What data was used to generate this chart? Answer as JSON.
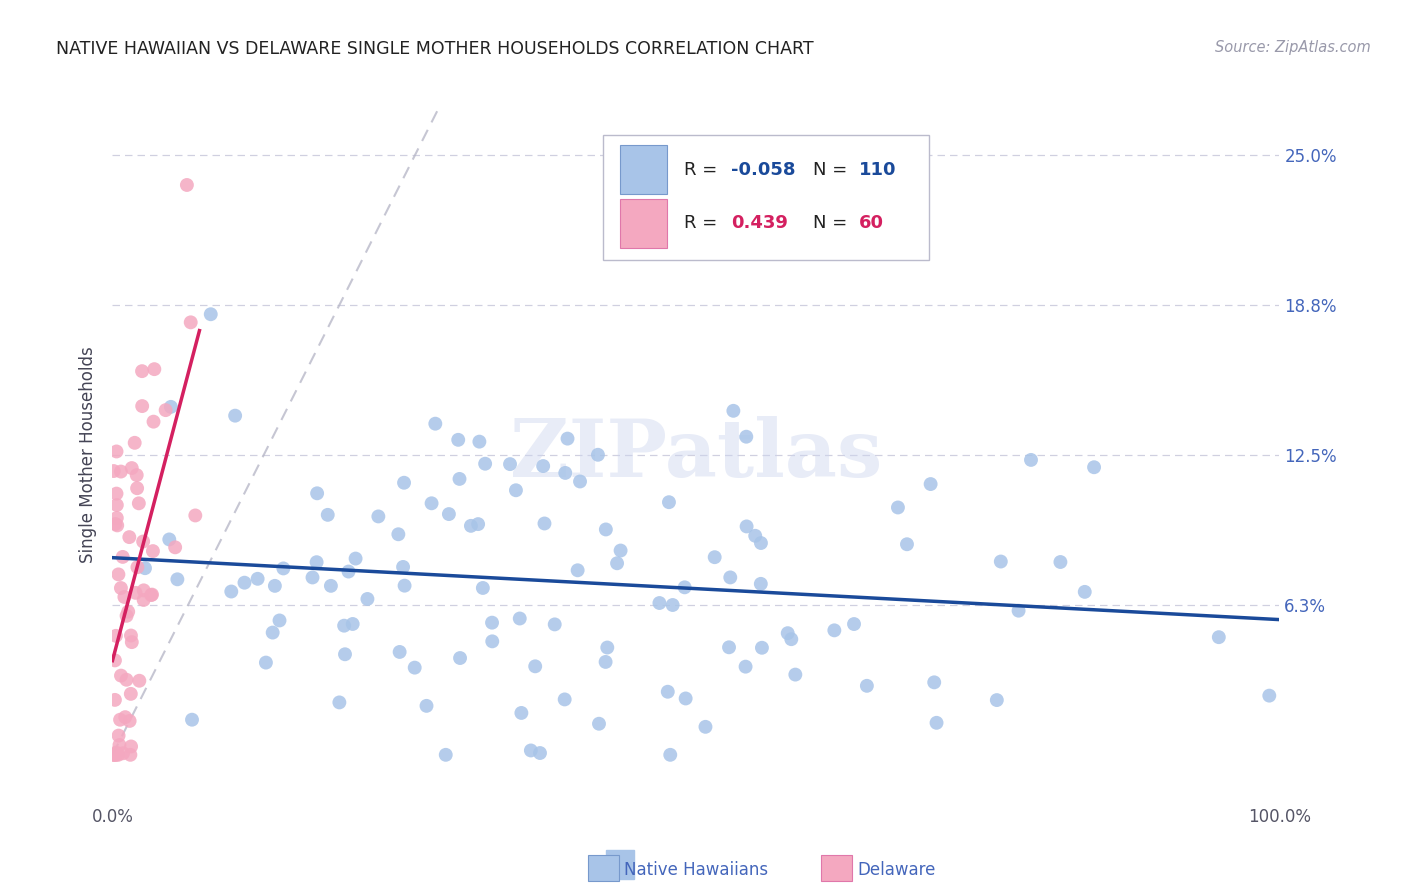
{
  "title": "NATIVE HAWAIIAN VS DELAWARE SINGLE MOTHER HOUSEHOLDS CORRELATION CHART",
  "source": "Source: ZipAtlas.com",
  "ylabel": "Single Mother Households",
  "watermark": "ZIPatlas",
  "ytick_vals": [
    0.0,
    0.0625,
    0.125,
    0.1875,
    0.25
  ],
  "ytick_labels_right": [
    "6.3%",
    "12.5%",
    "18.8%",
    "25.0%"
  ],
  "xtick_vals": [
    0.0,
    0.25,
    0.5,
    0.75,
    1.0
  ],
  "xtick_labels": [
    "0.0%",
    "",
    "",
    "",
    "100.0%"
  ],
  "xlim": [
    0.0,
    1.0
  ],
  "ylim": [
    -0.02,
    0.27
  ],
  "blue_color": "#a8c4e8",
  "pink_color": "#f4a8c0",
  "trendline_blue": "#1a4a9a",
  "trendline_pink": "#d42060",
  "gridline_color": "#d0d0e0",
  "title_color": "#222222",
  "ylabel_color": "#444455",
  "right_tick_color": "#4466bb",
  "N_blue": 110,
  "N_pink": 60,
  "R_blue": -0.058,
  "R_pink": 0.439,
  "seed_blue": 42,
  "seed_pink": 99
}
